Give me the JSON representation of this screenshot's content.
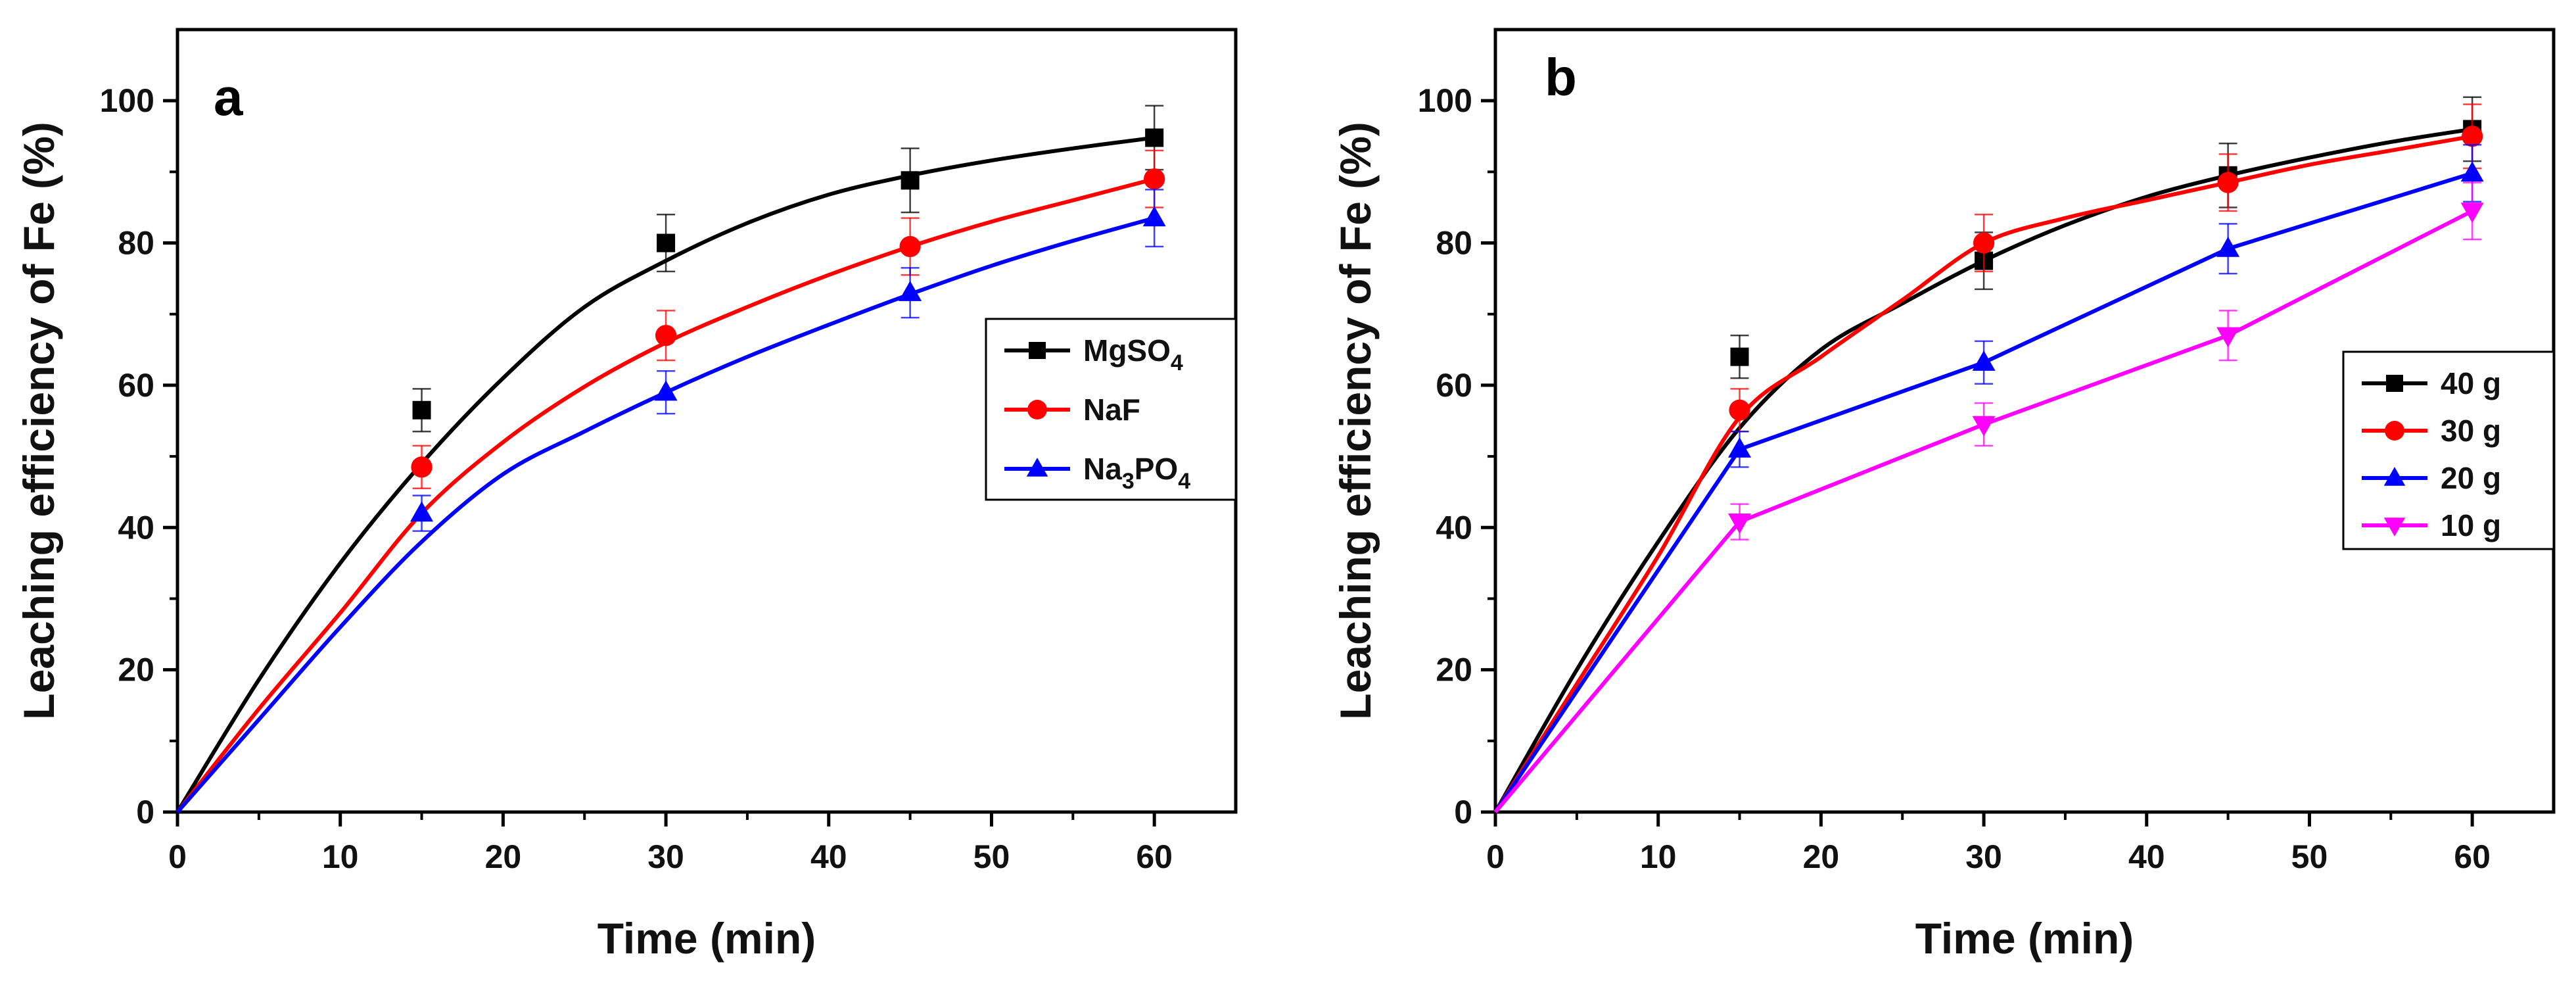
{
  "chart_data": [
    {
      "type": "line",
      "panel_label": "a",
      "xlabel": "Time (min)",
      "ylabel": "Leaching efficiency of Fe (%)",
      "xlim": [
        0,
        65
      ],
      "ylim": [
        0,
        110
      ],
      "xticks": [
        0,
        10,
        20,
        30,
        40,
        50,
        60
      ],
      "yticks": [
        0,
        20,
        40,
        60,
        80,
        100
      ],
      "legend_position": "right-middle",
      "fit": "smooth",
      "series": [
        {
          "name": "MgSO4",
          "legend_main": "MgSO",
          "legend_sub": "4",
          "legend_tail": "",
          "color": "#000000",
          "marker": "square",
          "x": [
            0,
            15,
            30,
            45,
            60
          ],
          "y": [
            0,
            56.5,
            80,
            88.8,
            94.8
          ],
          "err": [
            0,
            3,
            4,
            4.5,
            4.5
          ],
          "fit_x": [
            0,
            5,
            10,
            15,
            20,
            25,
            30,
            35,
            40,
            45,
            50,
            55,
            60
          ],
          "fit_y": [
            0,
            18.6,
            35,
            49,
            61,
            71,
            77.5,
            82.8,
            86.8,
            89.5,
            91.6,
            93.3,
            94.8
          ]
        },
        {
          "name": "NaF",
          "legend_main": "NaF",
          "legend_sub": "",
          "legend_tail": "",
          "color": "#ff0000",
          "marker": "circle",
          "x": [
            0,
            15,
            30,
            45,
            60
          ],
          "y": [
            0,
            48.5,
            67,
            79.5,
            89
          ],
          "err": [
            0,
            3,
            3.5,
            4,
            4
          ],
          "fit_x": [
            0,
            5,
            10,
            15,
            20,
            25,
            30,
            35,
            40,
            45,
            50,
            55,
            60
          ],
          "fit_y": [
            0,
            14.5,
            28,
            42,
            52,
            59.8,
            66,
            71,
            75.5,
            79.5,
            83,
            86,
            89
          ]
        },
        {
          "name": "Na3PO4",
          "legend_main": "Na",
          "legend_sub": "3",
          "legend_tail": "PO",
          "legend_sub2": "4",
          "color": "#0000ff",
          "marker": "triangle-up",
          "x": [
            0,
            15,
            30,
            45,
            60
          ],
          "y": [
            0,
            42,
            59,
            73,
            83.5
          ],
          "err": [
            0,
            2.5,
            3,
            3.5,
            4
          ],
          "fit_x": [
            0,
            5,
            10,
            15,
            20,
            25,
            30,
            35,
            40,
            45,
            50,
            55,
            60
          ],
          "fit_y": [
            0,
            13,
            26,
            38,
            47.5,
            53.5,
            59,
            64,
            68.5,
            72.8,
            76.8,
            80.3,
            83.5
          ]
        }
      ]
    },
    {
      "type": "line",
      "panel_label": "b",
      "xlabel": "Time (min)",
      "ylabel": "Leaching efficiency of Fe (%)",
      "xlim": [
        0,
        65
      ],
      "ylim": [
        0,
        110
      ],
      "xticks": [
        0,
        10,
        20,
        30,
        40,
        50,
        60
      ],
      "yticks": [
        0,
        20,
        40,
        60,
        80,
        100
      ],
      "legend_position": "right-middle",
      "fit": "mixed",
      "series": [
        {
          "name": "40 g",
          "legend_main": "40 g",
          "legend_sub": "",
          "legend_tail": "",
          "color": "#000000",
          "marker": "square",
          "x": [
            0,
            15,
            30,
            45,
            60
          ],
          "y": [
            0,
            64,
            77.5,
            89.5,
            96
          ],
          "err": [
            0,
            3,
            4,
            4.5,
            4.5
          ],
          "fit_x": [
            0,
            5,
            10,
            15,
            20,
            25,
            30,
            35,
            40,
            45,
            50,
            55,
            60
          ],
          "fit_y": [
            0,
            20,
            38,
            54,
            65,
            71.5,
            77.5,
            82.5,
            86.5,
            89.5,
            92,
            94.2,
            96
          ]
        },
        {
          "name": "30 g",
          "legend_main": "30 g",
          "legend_sub": "",
          "legend_tail": "",
          "color": "#ff0000",
          "marker": "circle",
          "x": [
            0,
            15,
            30,
            45,
            60
          ],
          "y": [
            0,
            56.5,
            80,
            88.5,
            95
          ],
          "err": [
            0,
            3,
            4,
            4,
            4.5
          ],
          "fit_x": [
            0,
            5,
            10,
            15,
            20,
            25,
            30,
            35,
            40,
            45,
            50,
            55,
            60
          ],
          "fit_y": [
            0,
            18,
            36,
            55.5,
            64,
            72,
            80,
            83.5,
            86,
            88.5,
            91,
            93,
            95
          ]
        },
        {
          "name": "20 g",
          "legend_main": "20 g",
          "legend_sub": "",
          "legend_tail": "",
          "color": "#0000ff",
          "marker": "triangle-up",
          "x": [
            0,
            15,
            30,
            45,
            60
          ],
          "y": [
            0,
            51,
            63.2,
            79.2,
            89.8
          ],
          "err": [
            0,
            2.5,
            3,
            3.5,
            4
          ],
          "fit_x": [
            0,
            15,
            30,
            45,
            60
          ],
          "fit_y": [
            0,
            51,
            63.2,
            79.2,
            89.8
          ]
        },
        {
          "name": "10 g",
          "legend_main": "10 g",
          "legend_sub": "",
          "legend_tail": "",
          "color": "#ff00ff",
          "marker": "triangle-down",
          "x": [
            0,
            15,
            30,
            45,
            60
          ],
          "y": [
            0,
            40.8,
            54.5,
            67,
            84.5
          ],
          "err": [
            0,
            2.5,
            3,
            3.5,
            4
          ],
          "fit_x": [
            0,
            15,
            30,
            45,
            60
          ],
          "fit_y": [
            0,
            40.8,
            54.5,
            67,
            84.5
          ]
        }
      ]
    }
  ]
}
